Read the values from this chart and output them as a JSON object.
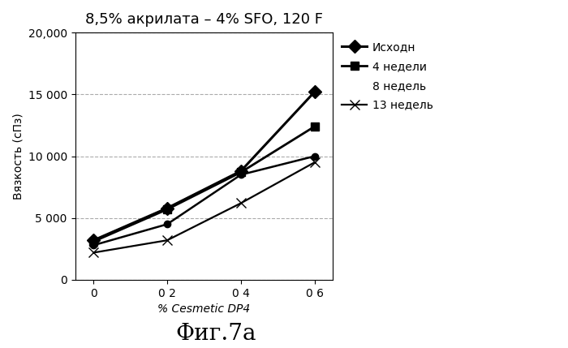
{
  "title": "8,5% акрилата – 4% SFO, 120 F",
  "xlabel": "% Cesmetic DP4",
  "ylabel": "Вязкость (сПз)",
  "caption": "Фиг.7a",
  "x_values": [
    0,
    0.2,
    0.4,
    0.6
  ],
  "x_tick_labels": [
    "0",
    "0 2",
    "0 4",
    "0 6"
  ],
  "series": [
    {
      "label": "Исходн",
      "y": [
        3200,
        5800,
        8800,
        15200
      ],
      "marker": "D",
      "color": "#000000",
      "linewidth": 2.2,
      "markersize": 8,
      "markerfacecolor": "#000000"
    },
    {
      "label": "4 недели",
      "y": [
        3100,
        5700,
        8700,
        12400
      ],
      "marker": "s",
      "color": "#000000",
      "linewidth": 2.0,
      "markersize": 7,
      "markerfacecolor": "#000000"
    },
    {
      "label": "8 недель",
      "y": [
        2800,
        4500,
        8500,
        10000
      ],
      "marker": "o",
      "color": "#000000",
      "linewidth": 1.8,
      "markersize": 6,
      "markerfacecolor": "#000000"
    },
    {
      "label": "13 недель",
      "y": [
        2200,
        3200,
        6200,
        9500
      ],
      "marker": "x",
      "color": "#000000",
      "linewidth": 1.6,
      "markersize": 8,
      "markerfacecolor": "#000000"
    }
  ],
  "ylim": [
    0,
    20000
  ],
  "yticks": [
    0,
    5000,
    10000,
    15000,
    20000
  ],
  "ytick_labels": [
    "0",
    "5 000",
    "10 000",
    "15 000",
    "20,000"
  ],
  "background_color": "#ffffff",
  "grid_color": "#888888",
  "title_fontsize": 13,
  "axis_label_fontsize": 10,
  "tick_fontsize": 10,
  "caption_fontsize": 20,
  "legend_fontsize": 10
}
